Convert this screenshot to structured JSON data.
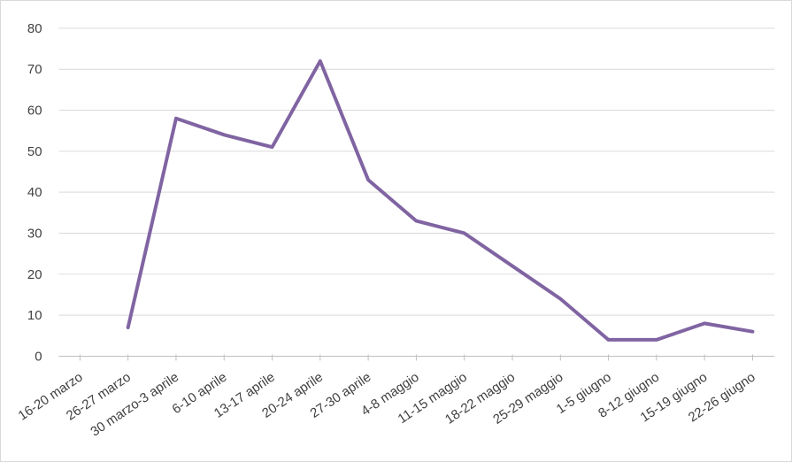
{
  "chart_data": {
    "type": "line",
    "categories": [
      "16-20 marzo",
      "26-27 marzo",
      "30 marzo-3 aprile",
      "6-10 aprile",
      "13-17 aprile",
      "20-24 aprile",
      "27-30 aprile",
      "4-8 maggio",
      "11-15 maggio",
      "18-22 maggio",
      "25-29 maggio",
      "1-5 giugno",
      "8-12 giugno",
      "15-19 giugno",
      "22-26 giugno"
    ],
    "series": [
      {
        "values": [
          null,
          7,
          58,
          54,
          51,
          72,
          43,
          33,
          30,
          22,
          14,
          4,
          4,
          8,
          6
        ]
      }
    ],
    "title": "",
    "xlabel": "",
    "ylabel": "",
    "ylim": [
      0,
      80
    ],
    "y_ticks": [
      0,
      10,
      20,
      30,
      40,
      50,
      60,
      70,
      80
    ],
    "grid": true,
    "legend": "none",
    "colors": {
      "line": "#8064A2",
      "gridline": "#D9D9D9",
      "axis": "#BFBFBF",
      "labels": "#404040",
      "background": "#FFFFFF",
      "border": "#D9D9D9"
    }
  }
}
